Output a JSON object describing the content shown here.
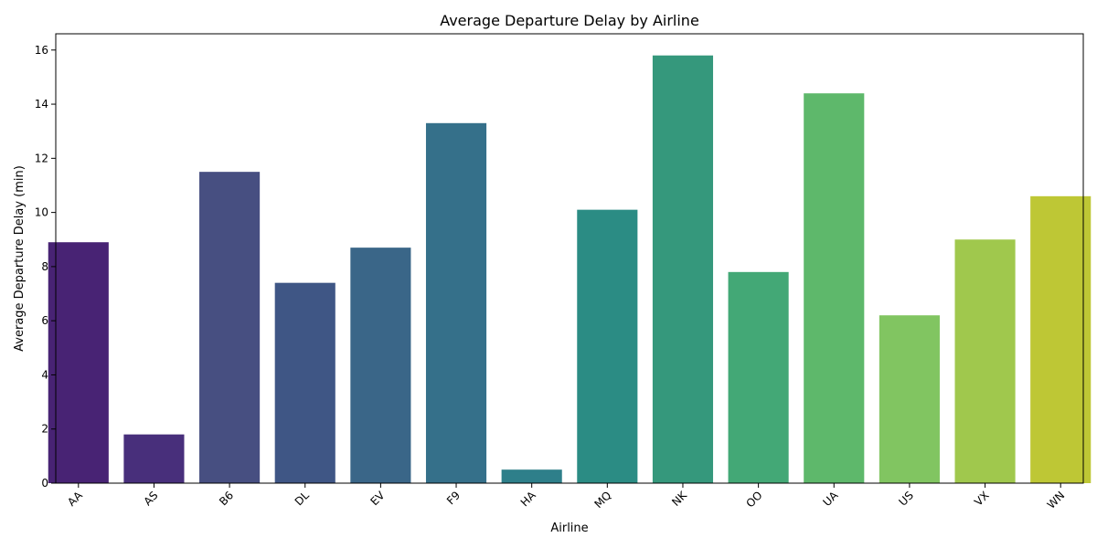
{
  "chart_data": {
    "type": "bar",
    "title": "Average Departure Delay by Airline",
    "xlabel": "Airline",
    "ylabel": "Average Departure Delay (min)",
    "categories": [
      "AA",
      "AS",
      "B6",
      "DL",
      "EV",
      "F9",
      "HA",
      "MQ",
      "NK",
      "OO",
      "UA",
      "US",
      "VX",
      "WN"
    ],
    "values": [
      8.9,
      1.8,
      11.5,
      7.4,
      8.7,
      13.3,
      0.5,
      10.1,
      15.8,
      7.8,
      14.4,
      6.2,
      9.0,
      10.6
    ],
    "colors": [
      "#482374",
      "#482f7b",
      "#474f81",
      "#3f5685",
      "#3a6688",
      "#35708a",
      "#2e7f8a",
      "#2b8c84",
      "#35987c",
      "#43a876",
      "#5eb86b",
      "#81c561",
      "#a0c84d",
      "#bec735"
    ],
    "ylim": [
      0,
      16.6
    ],
    "yticks": [
      0,
      2,
      4,
      6,
      8,
      10,
      12,
      14,
      16
    ],
    "grid": false,
    "legend": "none"
  }
}
